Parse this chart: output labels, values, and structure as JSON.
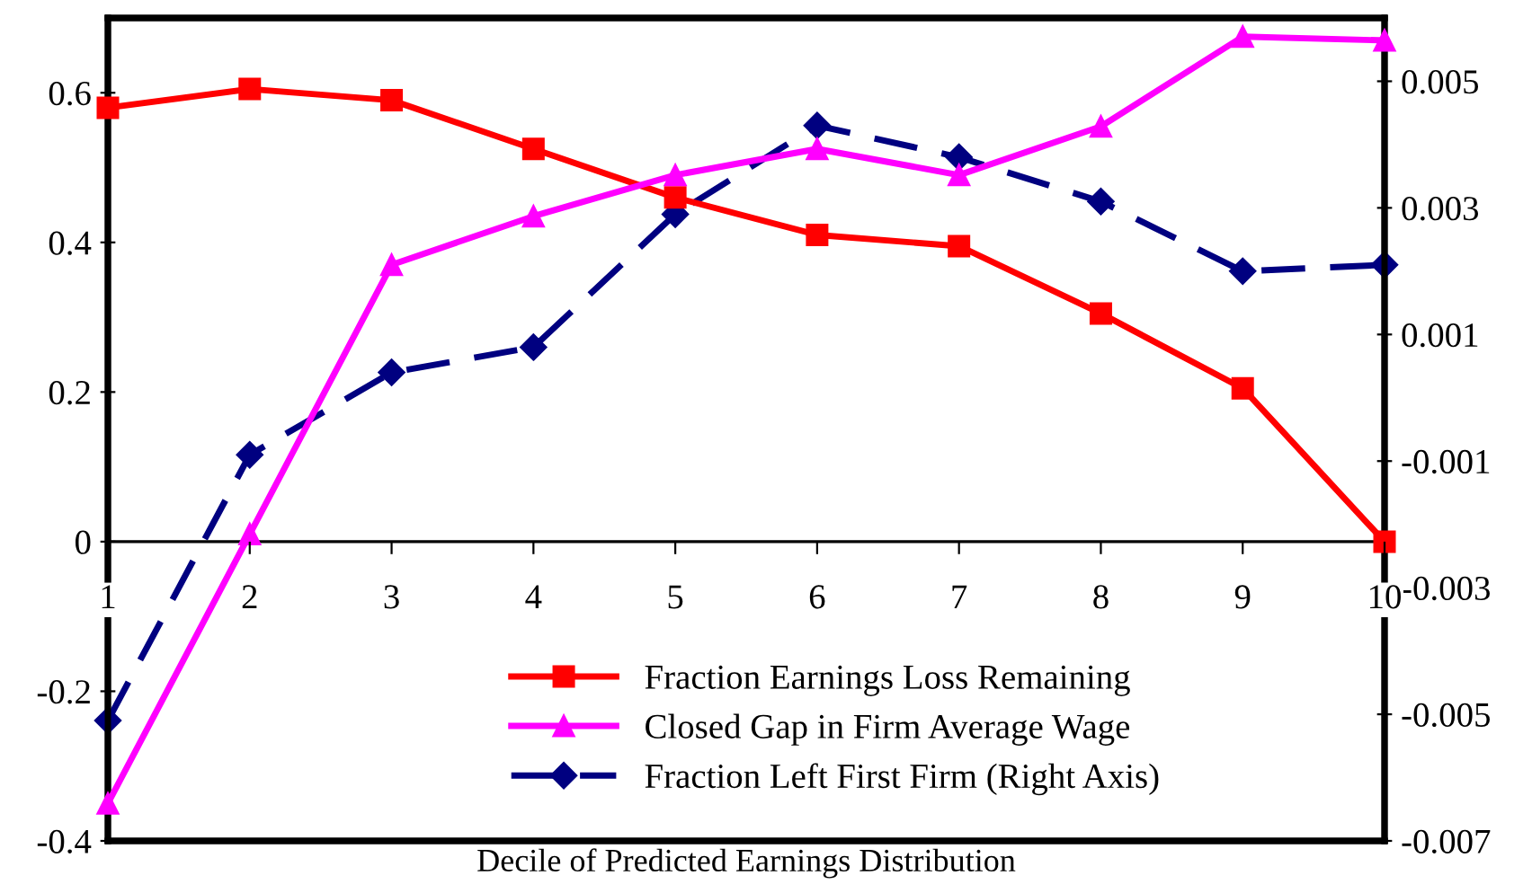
{
  "chart_data": {
    "type": "line",
    "xlabel": "Decile of Predicted Earnings Distribution",
    "categories": [
      "1",
      "2",
      "3",
      "4",
      "5",
      "6",
      "7",
      "8",
      "9",
      "10"
    ],
    "series": [
      {
        "name": "Fraction Earnings Loss Remaining",
        "color": "#ff0000",
        "marker": "square",
        "line_style": "solid",
        "values": [
          0.58,
          0.605,
          0.59,
          0.525,
          0.46,
          0.41,
          0.395,
          0.305,
          0.205,
          0.0
        ]
      },
      {
        "name": "Closed Gap in Firm Average Wage",
        "color": "#ff00ff",
        "marker": "triangle",
        "line_style": "solid",
        "values": [
          -0.35,
          0.01,
          0.37,
          0.435,
          0.49,
          0.525,
          0.49,
          0.555,
          0.675,
          0.67
        ]
      },
      {
        "name": "Fraction Left First Firm (Right Axis)",
        "color": "#000080",
        "marker": "diamond",
        "line_style": "dashed",
        "axis": "y2",
        "values": [
          -0.0051,
          -0.0009,
          0.0004,
          0.0008,
          0.0029,
          0.0043,
          0.0038,
          0.0031,
          0.002,
          0.0021
        ]
      }
    ],
    "ylim": [
      -0.4,
      0.7
    ],
    "yticks": [
      -0.4,
      -0.2,
      0,
      0.2,
      0.4,
      0.6
    ],
    "y2lim": [
      -0.007,
      0.006
    ],
    "y2ticks": [
      -0.007,
      -0.005,
      -0.003,
      -0.001,
      0.001,
      0.003,
      0.005
    ],
    "grid": false,
    "legend": "bottom"
  }
}
